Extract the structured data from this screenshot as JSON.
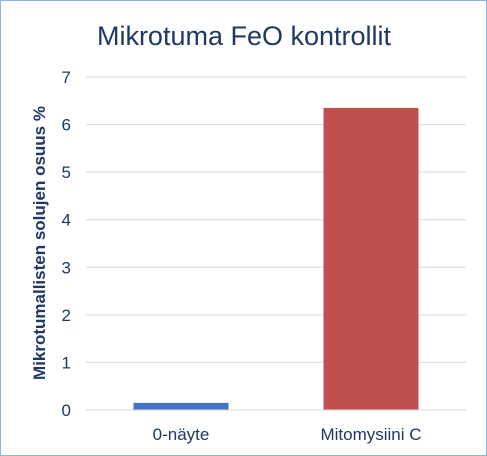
{
  "chart_data": {
    "type": "bar",
    "title": "Mikrotuma FeO kontrollit",
    "xlabel": "",
    "ylabel": "Mikrotumallisten solujen osuus %",
    "categories": [
      "0-näyte",
      "Mitomysiini C"
    ],
    "values": [
      0.15,
      6.35
    ],
    "bar_colors": [
      "#4472c4",
      "#c0504d"
    ],
    "ylim": [
      0,
      7
    ],
    "yticks": [
      0,
      1,
      2,
      3,
      4,
      5,
      6,
      7
    ],
    "grid": true,
    "legend": "none"
  }
}
